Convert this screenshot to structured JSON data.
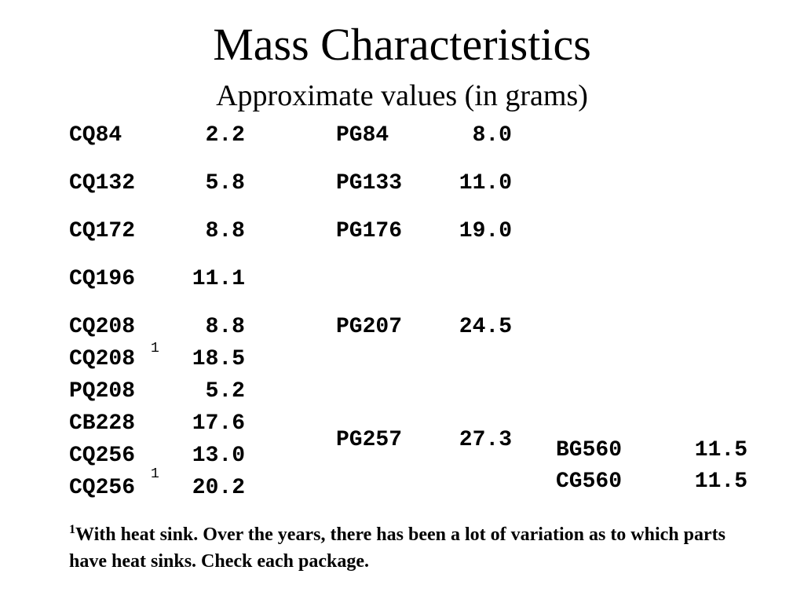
{
  "title": "Mass Characteristics",
  "subtitle": "Approximate values (in grams)",
  "column1": [
    {
      "name": "CQ84",
      "value": "2.2"
    },
    {
      "name": "CQ132",
      "value": "5.8"
    },
    {
      "name": "CQ172",
      "value": "8.8"
    },
    {
      "name": "CQ196",
      "value": "11.1"
    },
    {
      "name": "CQ208",
      "value": "8.8"
    },
    {
      "name": "CQ208",
      "value": "18.5",
      "footnote": "1"
    },
    {
      "name": "PQ208",
      "value": "5.2"
    },
    {
      "name": "CB228",
      "value": "17.6"
    },
    {
      "name": "CQ256",
      "value": "13.0"
    },
    {
      "name": "CQ256",
      "value": "20.2",
      "footnote": "1"
    }
  ],
  "column2": [
    {
      "name": "PG84",
      "value": "8.0"
    },
    {
      "name": "PG133",
      "value": "11.0"
    },
    {
      "name": "PG176",
      "value": "19.0"
    },
    {
      "name": "PG207",
      "value": "24.5"
    },
    {
      "name": "PG257",
      "value": "27.3"
    }
  ],
  "column3": [
    {
      "name": "BG560",
      "value": "11.5"
    },
    {
      "name": "CG560",
      "value": "11.5"
    }
  ],
  "footnote": {
    "marker": "1",
    "text": "With heat sink. Over the years, there has been a lot of variation as to which parts have heat sinks.  Check each package."
  }
}
